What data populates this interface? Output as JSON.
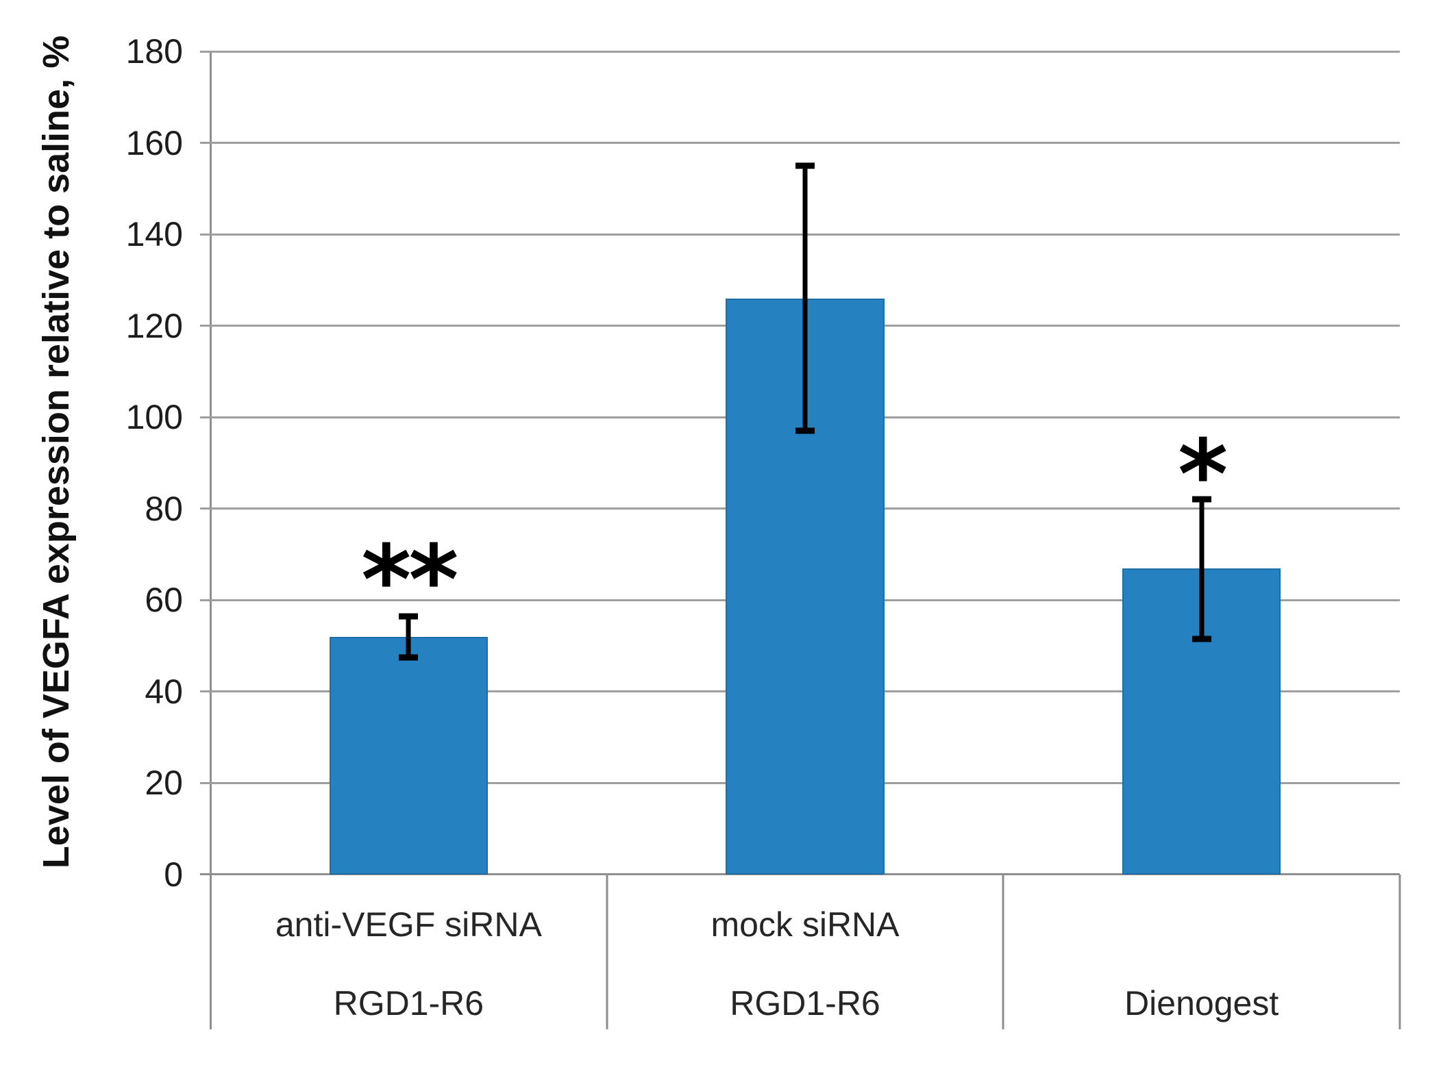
{
  "chart_data": {
    "type": "bar",
    "title": "",
    "xlabel": "",
    "ylabel": "Level of VEGFA expression relative to saline, %",
    "ylim": [
      0,
      180
    ],
    "yticks": [
      0,
      20,
      40,
      60,
      80,
      100,
      120,
      140,
      160,
      180
    ],
    "grid": true,
    "legend": "none",
    "categories": [
      {
        "line1": "anti-VEGF siRNA",
        "line2": "RGD1-R6"
      },
      {
        "line1": "mock siRNA",
        "line2": "RGD1-R6"
      },
      {
        "line1": "",
        "line2": "Dienogest"
      }
    ],
    "series": [
      {
        "name": "Level of VEGFA expression relative to saline, %",
        "values": [
          52,
          126,
          67
        ],
        "error_low": [
          47.5,
          97,
          51.5
        ],
        "error_high": [
          56.5,
          155,
          82
        ]
      }
    ],
    "annotations": [
      {
        "bar_index": 0,
        "text": "**",
        "y_value": 71
      },
      {
        "bar_index": 2,
        "text": "*",
        "y_value": 94
      }
    ],
    "bar_color": "#2581c0",
    "bar_width_fraction": 0.4,
    "grid_color": "#9e9e9e",
    "axis_color": "#8e8e8e",
    "error_bar_color": "#000000"
  }
}
